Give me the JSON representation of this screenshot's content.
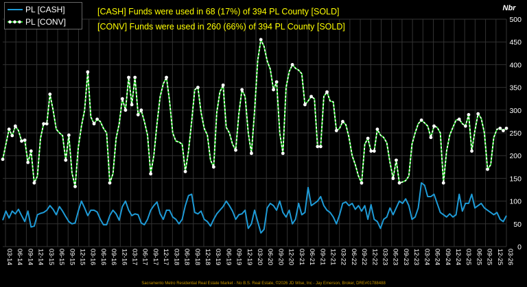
{
  "legend": {
    "cash_label": "PL [CASH]",
    "conv_label": "PL [CONV]"
  },
  "annotations": {
    "cash": "[CASH] Funds were used in 68 (17%) of 394 PL County [SOLD]",
    "conv": "[CONV] Funds were used in 260 (66%) of 394 PL County [SOLD]"
  },
  "footer": "Sacramento Metro Residential Real Estate Market - No B.S. Real Estate, ©2026 JD Wise, Inc - Jay Emerson, Broker, DRE#01788488",
  "colors": {
    "background": "#000000",
    "cash": "#1e9bd7",
    "conv": "#22dd22",
    "marker": "#ffffff",
    "axis_text": "#ffffff",
    "note_text": "#ffff00",
    "grid": "#333333"
  },
  "chart_data": {
    "type": "line",
    "ylabel": "Nbr",
    "ylim": [
      0,
      500
    ],
    "yticks": [
      0,
      50,
      100,
      150,
      200,
      250,
      300,
      350,
      400,
      450,
      500
    ],
    "y_axis_position": "right",
    "grid": true,
    "legend_position": "top-left",
    "x_tick_labels": [
      "03-14",
      "06-14",
      "09-14",
      "12-14",
      "03-15",
      "06-15",
      "09-15",
      "12-15",
      "03-16",
      "06-16",
      "09-16",
      "12-16",
      "03-17",
      "06-17",
      "09-17",
      "12-17",
      "03-18",
      "06-18",
      "09-18",
      "12-18",
      "03-19",
      "06-19",
      "09-19",
      "12-19",
      "03-20",
      "06-20",
      "09-20",
      "12-20",
      "03-21",
      "06-21",
      "09-21",
      "12-21",
      "03-22",
      "06-22",
      "09-22",
      "12-22",
      "03-23",
      "06-23",
      "09-23",
      "12-23",
      "03-24",
      "06-24",
      "09-24",
      "12-24",
      "03-25",
      "06-25",
      "09-25",
      "12-25",
      "03-26"
    ],
    "series": [
      {
        "name": "PL [CASH]",
        "values": [
          58,
          78,
          63,
          78,
          72,
          82,
          68,
          55,
          78,
          43,
          45,
          70,
          73,
          75,
          80,
          90,
          82,
          70,
          88,
          78,
          66,
          55,
          50,
          52,
          78,
          100,
          85,
          68,
          80,
          80,
          76,
          60,
          48,
          48,
          68,
          80,
          72,
          58,
          88,
          100,
          80,
          68,
          72,
          70,
          52,
          48,
          60,
          80,
          90,
          98,
          72,
          60,
          80,
          80,
          65,
          60,
          50,
          60,
          90,
          112,
          115,
          75,
          72,
          78,
          60,
          55,
          45,
          60,
          72,
          80,
          88,
          100,
          90,
          78,
          60,
          70,
          72,
          80,
          40,
          50,
          80,
          55,
          30,
          38,
          85,
          95,
          90,
          80,
          100,
          75,
          65,
          80,
          50,
          60,
          95,
          70,
          75,
          130,
          90,
          95,
          100,
          110,
          90,
          80,
          75,
          65,
          50,
          70,
          95,
          98,
          90,
          95,
          82,
          90,
          78,
          90,
          60,
          92,
          60,
          55,
          40,
          60,
          65,
          85,
          70,
          85,
          100,
          95,
          105,
          90,
          60,
          65,
          85,
          140,
          135,
          110,
          110,
          115,
          95,
          75,
          70,
          65,
          72,
          65,
          70,
          115,
          78,
          95,
          95,
          115,
          85,
          90,
          95,
          85,
          80,
          75,
          70,
          75,
          60,
          55,
          68
        ]
      },
      {
        "name": "PL [CONV]",
        "values": [
          192,
          225,
          258,
          244,
          265,
          255,
          232,
          234,
          185,
          210,
          140,
          155,
          238,
          270,
          270,
          335,
          300,
          258,
          250,
          244,
          190,
          245,
          162,
          132,
          218,
          265,
          300,
          384,
          285,
          270,
          280,
          275,
          260,
          250,
          140,
          160,
          238,
          270,
          325,
          300,
          372,
          312,
          372,
          290,
          300,
          275,
          245,
          160,
          200,
          270,
          330,
          358,
          372,
          320,
          250,
          232,
          230,
          225,
          165,
          210,
          275,
          345,
          350,
          295,
          260,
          245,
          190,
          175,
          295,
          340,
          355,
          262,
          250,
          225,
          212,
          292,
          345,
          330,
          250,
          205,
          298,
          410,
          455,
          440,
          408,
          390,
          345,
          362,
          250,
          205,
          350,
          385,
          400,
          392,
          388,
          380,
          312,
          320,
          330,
          325,
          220,
          220,
          330,
          340,
          320,
          318,
          255,
          260,
          275,
          268,
          240,
          200,
          180,
          155,
          140,
          225,
          238,
          210,
          210,
          258,
          245,
          240,
          228,
          185,
          150,
          190,
          140,
          142,
          145,
          155,
          225,
          250,
          270,
          278,
          272,
          265,
          240,
          265,
          262,
          250,
          140,
          210,
          245,
          262,
          278,
          280,
          270,
          265,
          290,
          210,
          255,
          292,
          282,
          250,
          170,
          180,
          240,
          258,
          260,
          255,
          260
        ]
      }
    ]
  }
}
